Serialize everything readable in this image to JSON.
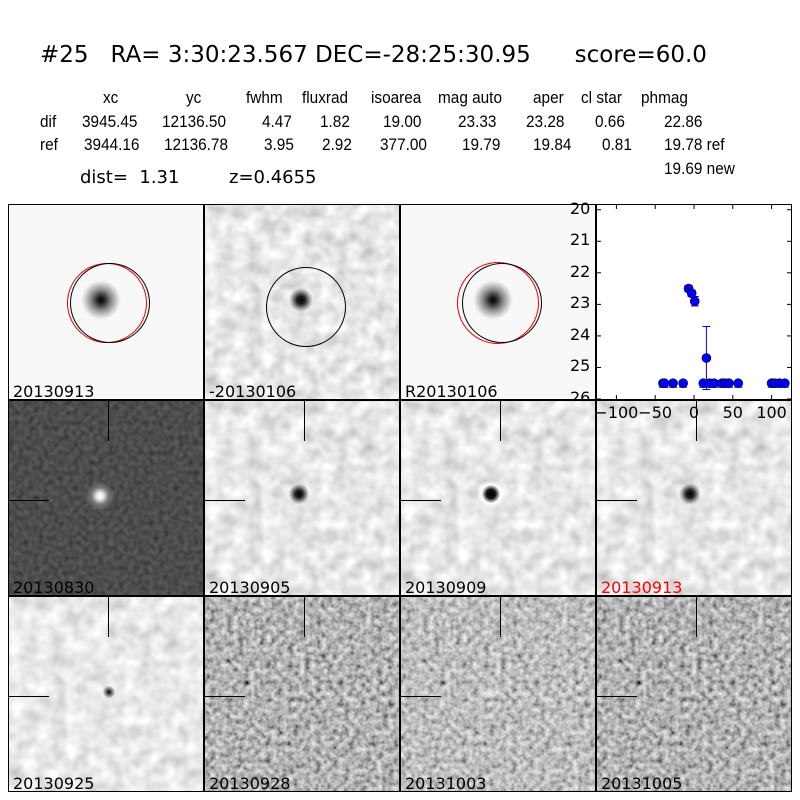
{
  "header": {
    "title": "#25   RA= 3:30:23.567 DEC=-28:25:30.95      score=60.0",
    "columns": [
      "xc",
      "yc",
      "fwhm",
      "fluxrad",
      "isoarea",
      "mag auto",
      "aper",
      "cl star",
      "phmag"
    ],
    "rows": [
      {
        "label": "dif",
        "values": [
          "3945.45",
          "12136.50",
          "4.47",
          "1.82",
          "19.00",
          "23.33",
          "23.28",
          "0.66",
          "22.86"
        ]
      },
      {
        "label": "ref",
        "values": [
          "3944.16",
          "12136.78",
          "3.95",
          "2.92",
          "377.00",
          "19.79",
          "19.84",
          "0.81",
          "19.78 ref"
        ]
      }
    ],
    "new_mag": "19.69 new",
    "dist": "dist=  1.31",
    "z": "z=0.4655"
  },
  "stamps": [
    {
      "label": "20130913",
      "color": "#000000"
    },
    {
      "label": "-20130106",
      "color": "#000000"
    },
    {
      "label": "R20130106",
      "color": "#000000"
    },
    {
      "label": "20130830",
      "color": "#000000"
    },
    {
      "label": "20130905",
      "color": "#000000"
    },
    {
      "label": "20130909",
      "color": "#000000"
    },
    {
      "label": "20130913",
      "color": "#ff0000"
    },
    {
      "label": "20130925",
      "color": "#000000"
    },
    {
      "label": "20130928",
      "color": "#000000"
    },
    {
      "label": "20131003",
      "color": "#000000"
    },
    {
      "label": "20131005",
      "color": "#000000"
    }
  ],
  "chart_data": {
    "type": "scatter",
    "title": "",
    "xlabel": "",
    "ylabel": "",
    "xlim": [
      -125,
      125
    ],
    "ylim": [
      26,
      19.85
    ],
    "y_inverted": true,
    "xticks": [
      -100,
      -50,
      0,
      50,
      100
    ],
    "xtick_labels": [
      "−100",
      "−50",
      "0",
      "50",
      "100"
    ],
    "yticks": [
      20,
      21,
      22,
      23,
      24,
      25,
      26
    ],
    "ytick_labels": [
      "20",
      "21",
      "22",
      "23",
      "24",
      "25",
      "26"
    ],
    "marker_color": "#0000ff",
    "points": [
      {
        "x": -40,
        "y": 25.5
      },
      {
        "x": -38,
        "y": 25.5
      },
      {
        "x": -27,
        "y": 25.5
      },
      {
        "x": -14,
        "y": 25.5
      },
      {
        "x": -7,
        "y": 22.5,
        "err": 0.1
      },
      {
        "x": -3,
        "y": 22.65,
        "err": 0.1
      },
      {
        "x": 1,
        "y": 22.9,
        "err": 0.15
      },
      {
        "x": 12,
        "y": 25.5
      },
      {
        "x": 16,
        "y": 24.7,
        "err": 1.0
      },
      {
        "x": 20,
        "y": 25.5
      },
      {
        "x": 26,
        "y": 25.5
      },
      {
        "x": 36,
        "y": 25.5
      },
      {
        "x": 40,
        "y": 25.5
      },
      {
        "x": 45,
        "y": 25.5
      },
      {
        "x": 57,
        "y": 25.5
      },
      {
        "x": 100,
        "y": 25.5
      },
      {
        "x": 104,
        "y": 25.5
      },
      {
        "x": 110,
        "y": 25.5
      },
      {
        "x": 117,
        "y": 25.5
      }
    ]
  }
}
